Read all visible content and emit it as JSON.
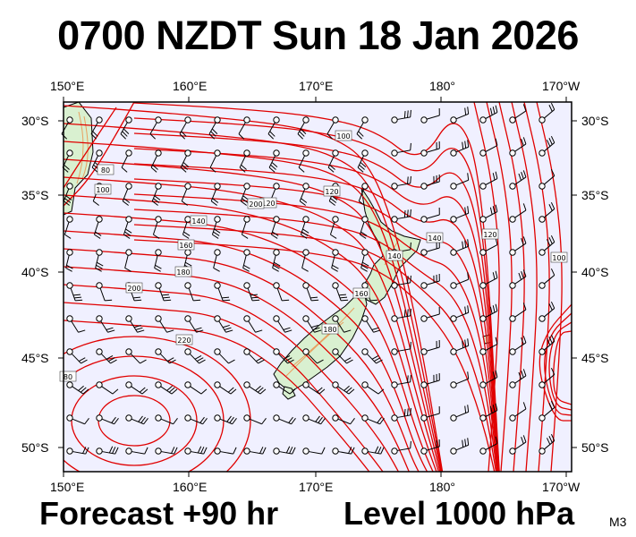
{
  "title": "0700 NZDT Sun 18 Jan 2026",
  "lon_labels": [
    "150°E",
    "160°E",
    "170°E",
    "180°",
    "170°W"
  ],
  "lat_labels": [
    "30°S",
    "35°S",
    "40°S",
    "45°S",
    "50°S"
  ],
  "forecast": "Forecast +90 hr",
  "level": "Level 1000 hPa",
  "model_code": "M3",
  "contour_labels": [
    "80",
    "100",
    "120",
    "140",
    "160",
    "180",
    "200",
    "220",
    "80",
    "100",
    "120",
    "140",
    "160",
    "180",
    "200",
    "140",
    "120",
    "100"
  ],
  "colors": {
    "ocean": "#f0f0ff",
    "land": "#d9f0d0",
    "contour": "#e00000",
    "terrain": "#e8a060",
    "wind": "#000000"
  }
}
